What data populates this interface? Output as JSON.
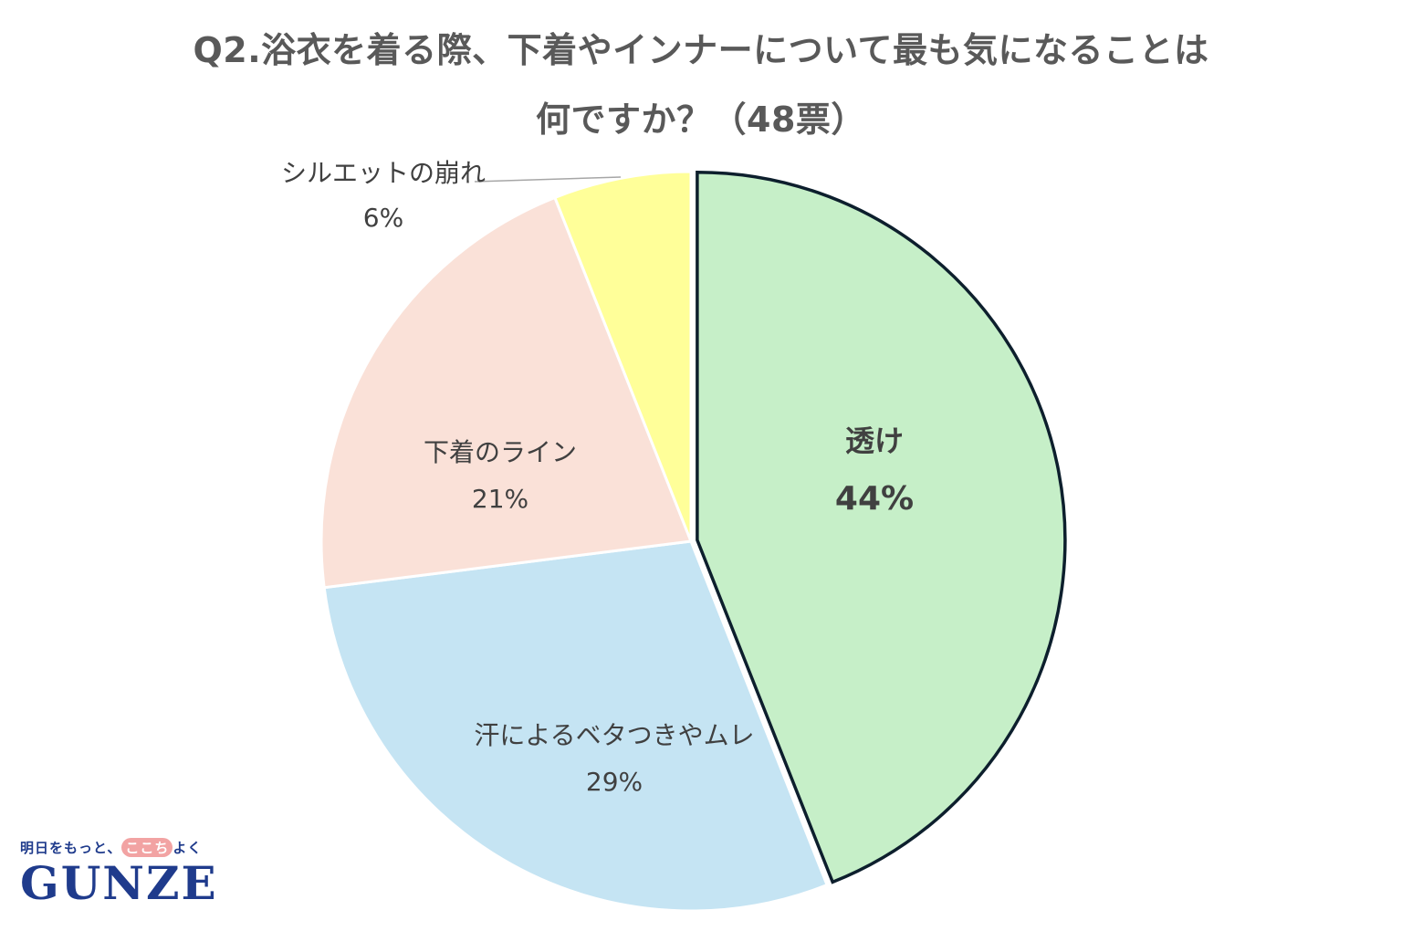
{
  "title_lines": [
    "Q2.浴衣を着る際、下着やインナーについて最も気になることは",
    "何ですか？（48票）"
  ],
  "chart_data": {
    "type": "pie",
    "title": "Q2.浴衣を着る際、下着やインナーについて最も気になることは何ですか？（48票）",
    "slices": [
      {
        "label": "透け",
        "value": 44,
        "value_label": "44%",
        "color": "#c6efc8",
        "emphasized": true
      },
      {
        "label": "汗によるベタつきやムレ",
        "value": 29,
        "value_label": "29%",
        "color": "#c5e4f3"
      },
      {
        "label": "下着のライン",
        "value": 21,
        "value_label": "21%",
        "color": "#fae1d8"
      },
      {
        "label": "シルエットの崩れ",
        "value": 6,
        "value_label": "6%",
        "color": "#ffff99"
      }
    ],
    "start": "12 o'clock, clockwise"
  },
  "logo": {
    "tagline_before": "明日をもっと、",
    "tagline_highlight": "ここち",
    "tagline_after": "よく",
    "brand": "GUNZE"
  }
}
